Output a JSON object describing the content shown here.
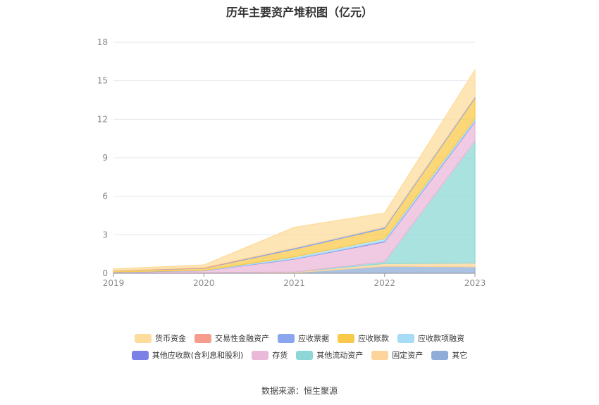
{
  "title": "历年主要资产堆积图（亿元）",
  "source": "数据来源：恒生聚源",
  "chart_data": {
    "type": "area",
    "stacked": true,
    "categories": [
      "2019",
      "2020",
      "2021",
      "2022",
      "2023"
    ],
    "ylim": [
      0,
      18
    ],
    "yticks": [
      "0",
      "3",
      "6",
      "9",
      "12",
      "15",
      "18"
    ],
    "grid": true,
    "legend_position": "bottom",
    "series": [
      {
        "name": "其它",
        "color": "#8fadd8",
        "values": [
          0.02,
          0.03,
          0.05,
          0.55,
          0.5
        ]
      },
      {
        "name": "固定资产",
        "color": "#fdd59a",
        "values": [
          0.02,
          0.02,
          0.05,
          0.2,
          0.3
        ]
      },
      {
        "name": "其他流动资产",
        "color": "#8dd8d6",
        "values": [
          0.0,
          0.0,
          0.0,
          0.15,
          9.5
        ]
      },
      {
        "name": "存货",
        "color": "#eab8d8",
        "values": [
          0.05,
          0.15,
          1.0,
          1.55,
          1.5
        ]
      },
      {
        "name": "其他应收款(含利息和股利)",
        "color": "#7b80e6",
        "values": [
          0.01,
          0.01,
          0.03,
          0.05,
          0.05
        ]
      },
      {
        "name": "应收款项融资",
        "color": "#a6dcf5",
        "values": [
          0.01,
          0.02,
          0.15,
          0.2,
          0.2
        ]
      },
      {
        "name": "应收账款",
        "color": "#fbc94a",
        "values": [
          0.1,
          0.15,
          0.6,
          0.8,
          1.6
        ]
      },
      {
        "name": "应收票据",
        "color": "#8aa6ef",
        "values": [
          0.02,
          0.02,
          0.1,
          0.1,
          0.1
        ]
      },
      {
        "name": "交易性金融资产",
        "color": "#f59c8c",
        "values": [
          0.0,
          0.05,
          0.0,
          0.0,
          0.0
        ]
      },
      {
        "name": "货币资金",
        "color": "#fddc9c",
        "values": [
          0.12,
          0.2,
          1.6,
          1.1,
          2.1
        ]
      }
    ],
    "legend_rows": [
      [
        "货币资金",
        "交易性金融资产",
        "应收票据",
        "应收账款",
        "应收款项融资"
      ],
      [
        "其他应收款(含利息和股利)",
        "存货",
        "其他流动资产",
        "固定资产",
        "其它"
      ]
    ]
  }
}
